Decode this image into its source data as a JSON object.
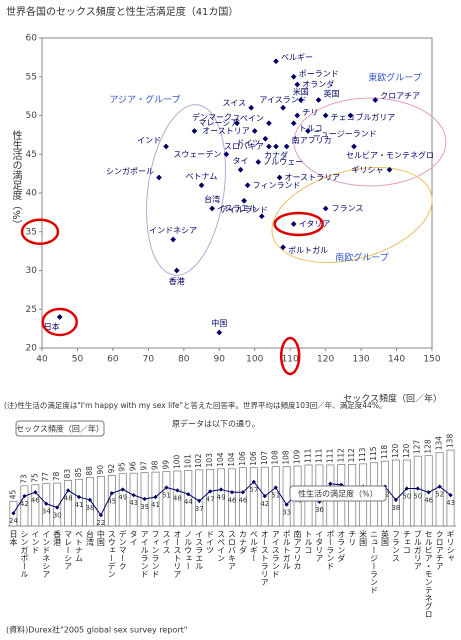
{
  "chart_data": [
    {
      "type": "scatter",
      "title": "世界各国のセックス頻度と性生活満足度（41カ国）",
      "x_label": "セックス頻度（回／年）",
      "y_label": "性生活の満足度（%）",
      "xlim": [
        40,
        150
      ],
      "xticks": [
        40,
        50,
        60,
        70,
        80,
        90,
        100,
        110,
        120,
        130,
        140,
        150
      ],
      "ylim": [
        20,
        60
      ],
      "yticks": [
        20,
        25,
        30,
        35,
        40,
        45,
        50,
        55,
        60
      ],
      "color": "#000066",
      "labels": [
        "日本",
        "シンガポール",
        "インド",
        "インドネシア",
        "香港",
        "マレーシア",
        "ベトナム",
        "台湾",
        "中国",
        "スウェーデン",
        "デンマーク",
        "タイ",
        "アイルランド",
        "フィンランド",
        "スイス",
        "オーストリア",
        "ノルウェー",
        "イスラエル",
        "ドイツ",
        "スペイン",
        "スロバキア",
        "カナダ",
        "ベルギー",
        "オーストラリア",
        "アイスランド",
        "ポルトガル",
        "南アフリカ",
        "トルコ",
        "イタリア",
        "ポーランド",
        "オランダ",
        "チリ",
        "米国",
        "ニュージーランド",
        "英国",
        "フランス",
        "チェコ",
        "ブルガリア",
        "セルビア・モンテネグロ",
        "クロアチア",
        "ギリシャ"
      ],
      "x": [
        45,
        73,
        75,
        77,
        78,
        83,
        85,
        88,
        90,
        92,
        95,
        96,
        97,
        98,
        99,
        100,
        101,
        102,
        103,
        104,
        104,
        106,
        106,
        107,
        108,
        108,
        109,
        111,
        111,
        111,
        112,
        112,
        113,
        115,
        118,
        120,
        120,
        127,
        128,
        134,
        138
      ],
      "values": [
        24,
        42,
        46,
        34,
        30,
        48,
        41,
        38,
        22,
        45,
        49,
        43,
        39,
        41,
        51,
        48,
        44,
        37,
        47,
        49,
        46,
        46,
        57,
        42,
        51,
        33,
        46,
        49,
        36,
        55,
        54,
        50,
        52,
        48,
        52,
        38,
        50,
        50,
        46,
        52,
        43
      ],
      "annotations": [
        "アジア・グループ",
        "東欧グループ",
        "南欧グループ"
      ]
    },
    {
      "type": "bar",
      "categories": [
        "日本",
        "シンガポール",
        "インド",
        "インドネシア",
        "香港",
        "マレーシア",
        "ベトナム",
        "台湾",
        "中国",
        "スウェーデン",
        "デンマーク",
        "タイ",
        "アイルランド",
        "フィンランド",
        "スイス",
        "オーストリア",
        "ノルウェー",
        "イスラエル",
        "ドイツ",
        "スペイン",
        "スロバキア",
        "カナダ",
        "ベルギー",
        "オーストラリア",
        "アイスランド",
        "ポルトガル",
        "南アフリカ",
        "トルコ",
        "イタリア",
        "ポーランド",
        "オランダ",
        "チリ",
        "米国",
        "ニュージーランド",
        "英国",
        "フランス",
        "チェコ",
        "ブルガリア",
        "セルビア・モンテネグロ",
        "クロアチア",
        "ギリシャ"
      ],
      "series": [
        {
          "name": "セックス頻度（回／年）",
          "color": "#ffffff",
          "values": [
            45,
            73,
            75,
            77,
            78,
            83,
            85,
            88,
            90,
            92,
            95,
            96,
            97,
            98,
            99,
            100,
            101,
            102,
            103,
            104,
            104,
            106,
            106,
            107,
            108,
            108,
            109,
            111,
            111,
            111,
            112,
            112,
            113,
            115,
            118,
            120,
            120,
            127,
            128,
            134,
            138
          ]
        },
        {
          "name": "性生活の満足度（%）",
          "color": "#000066",
          "values": [
            24,
            42,
            46,
            34,
            30,
            48,
            41,
            38,
            22,
            45,
            49,
            43,
            39,
            41,
            51,
            48,
            44,
            37,
            47,
            49,
            46,
            46,
            57,
            42,
            51,
            33,
            46,
            49,
            36,
            55,
            54,
            50,
            52,
            48,
            52,
            38,
            50,
            50,
            46,
            52,
            43
          ]
        }
      ]
    }
  ],
  "note": "(注)性生活の満足度は\"I'm happy with my sex life\"と答えた回答率。世界平均は頻度103回／年、満足度44%。",
  "subnote": "原データは以下の通り。",
  "source": "(資料)Durex社\"2005 global sex survey report\""
}
